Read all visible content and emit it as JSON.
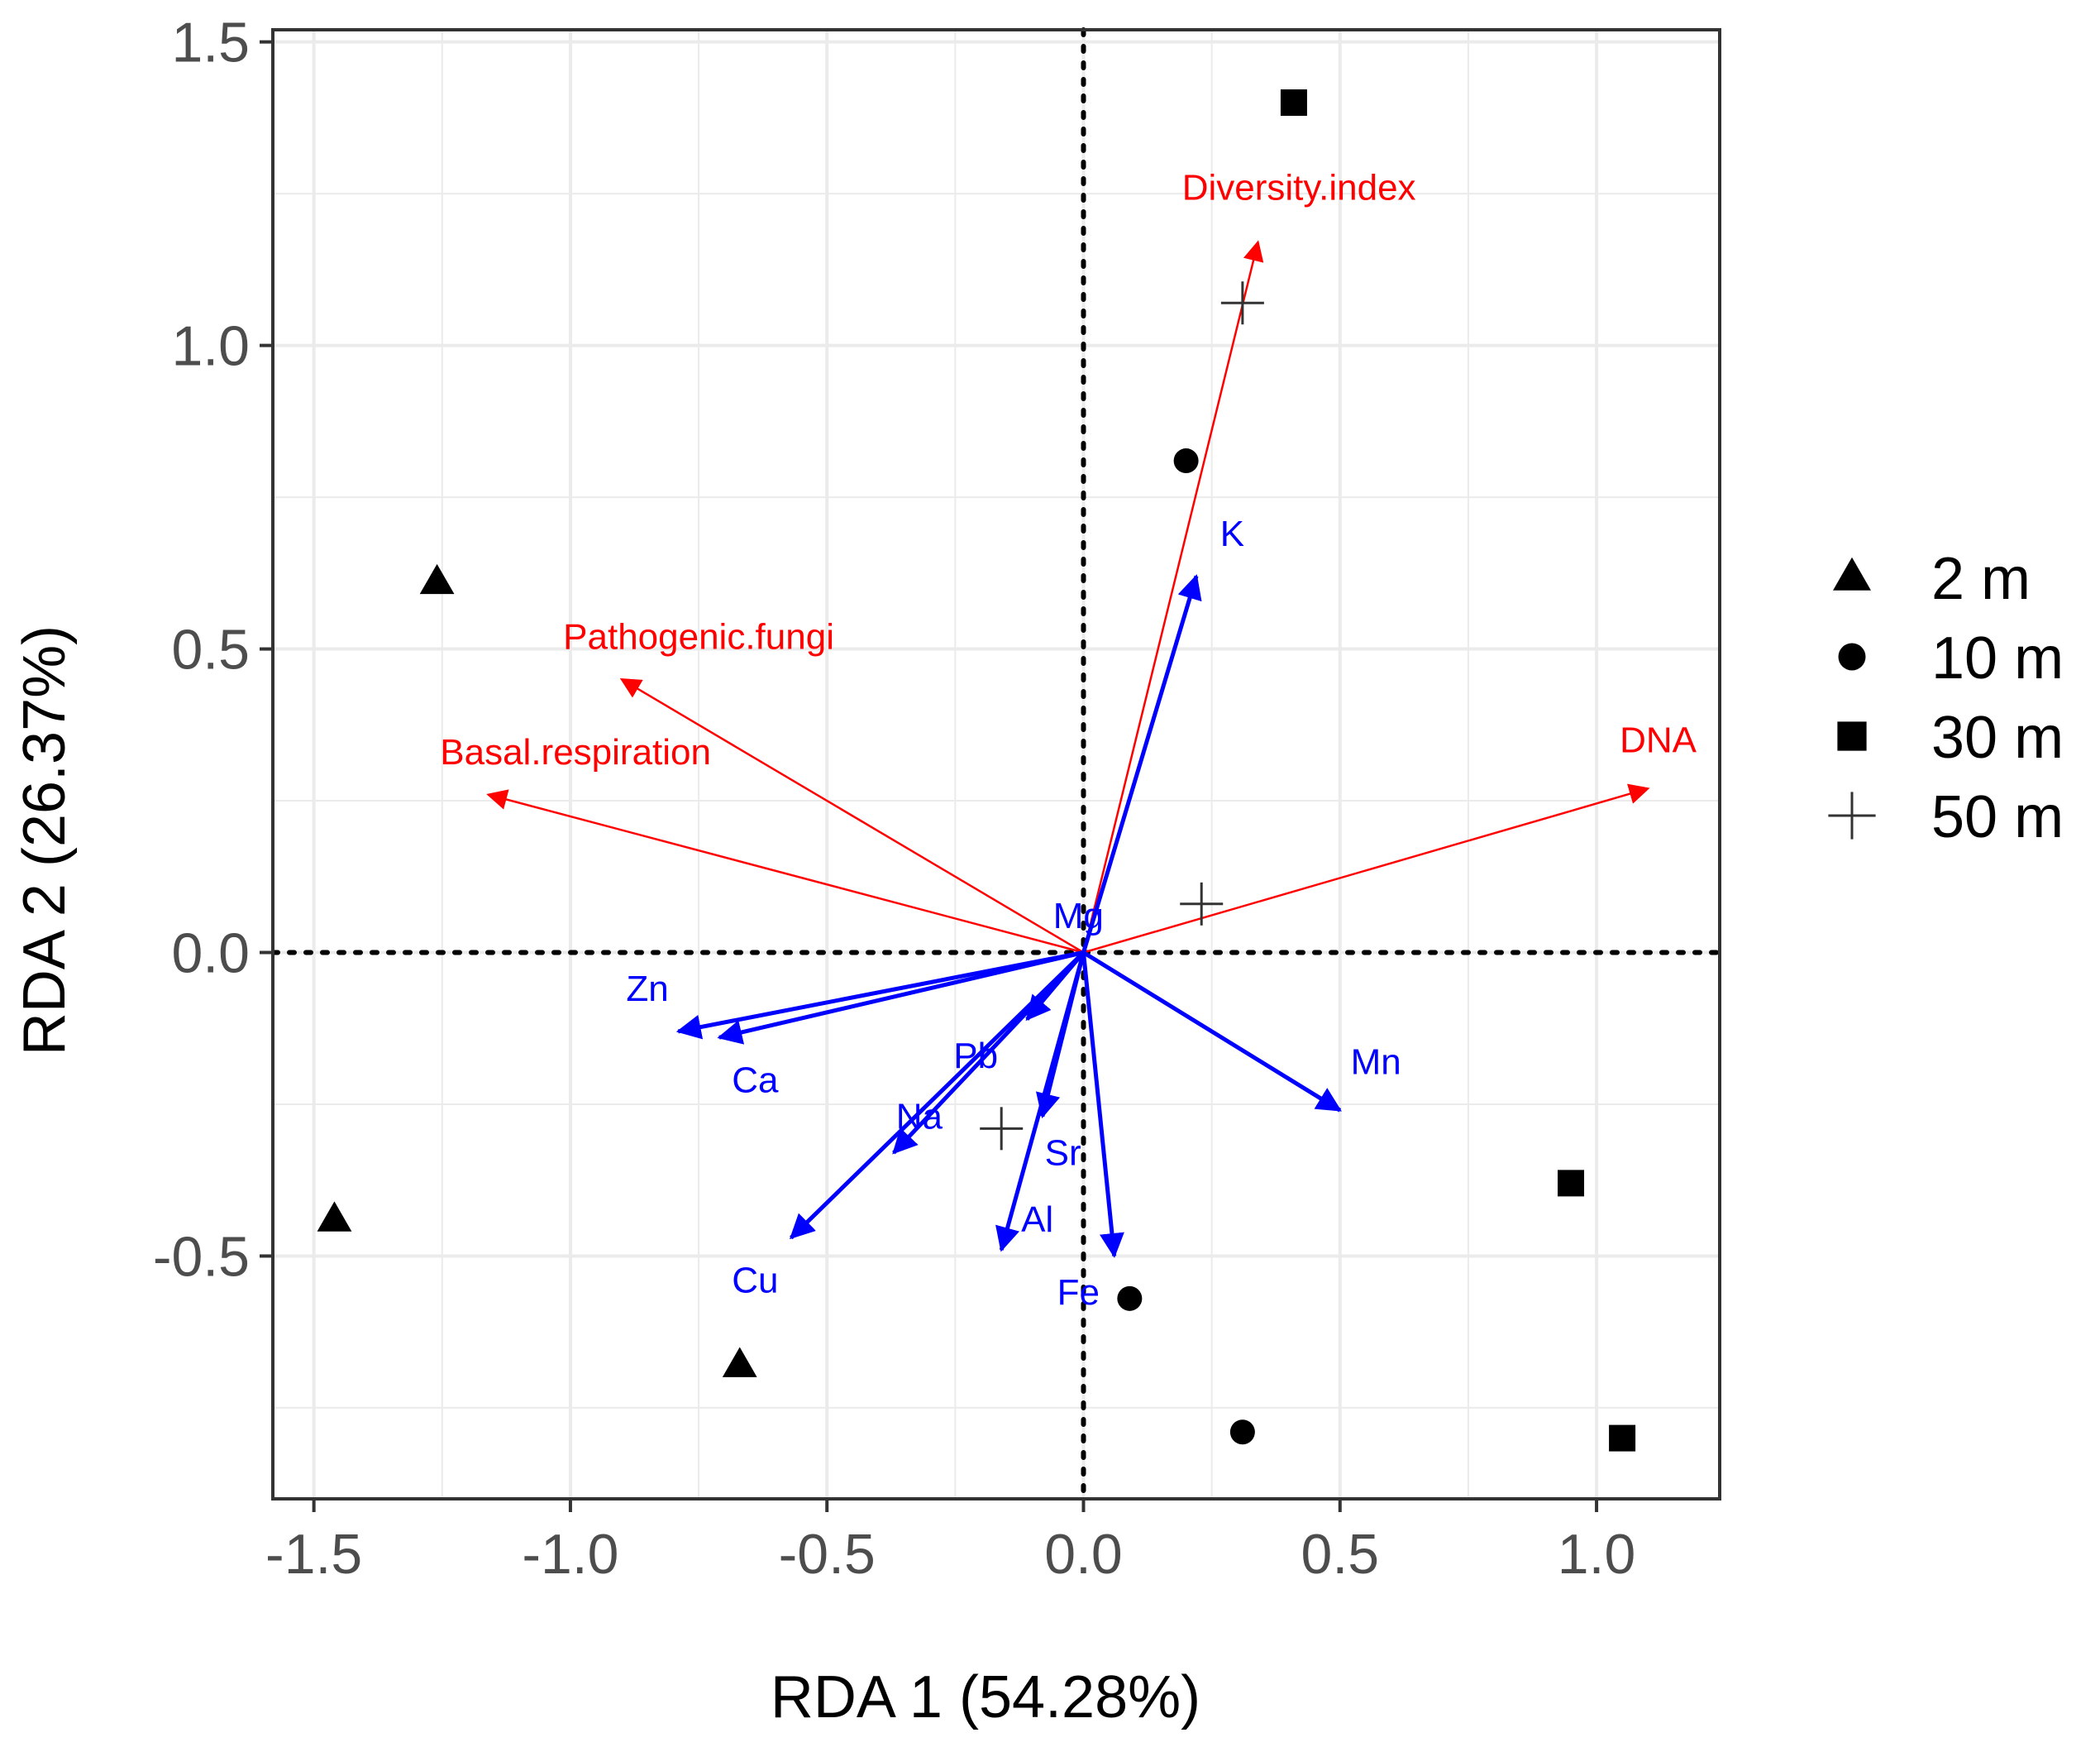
{
  "chart_data": {
    "type": "scatter",
    "subtype": "rda-biplot",
    "xlabel": "RDA 1 (54.28%)",
    "ylabel": "RDA 2 (26.37%)",
    "xlim": [
      -1.58,
      1.24
    ],
    "ylim": [
      -0.9,
      1.52
    ],
    "x_ticks": [
      -1.5,
      -1.0,
      -0.5,
      0.0,
      0.5,
      1.0
    ],
    "x_tick_labels": [
      "-1.5",
      "-1.0",
      "-0.5",
      "0.0",
      "0.5",
      "1.0"
    ],
    "y_ticks": [
      -0.5,
      0.0,
      0.5,
      1.0,
      1.5
    ],
    "y_tick_labels": [
      "-0.5",
      "0.0",
      "0.5",
      "1.0",
      "1.5"
    ],
    "grid": true,
    "legend_position": "right",
    "series": [
      {
        "name": "2 m",
        "shape": "triangle",
        "points": [
          [
            -1.26,
            0.61
          ],
          [
            -1.46,
            -0.44
          ],
          [
            -0.67,
            -0.68
          ]
        ]
      },
      {
        "name": "10 m",
        "shape": "circle",
        "points": [
          [
            0.2,
            0.81
          ],
          [
            0.09,
            -0.57
          ],
          [
            0.31,
            -0.79
          ]
        ]
      },
      {
        "name": "30 m",
        "shape": "square",
        "points": [
          [
            0.41,
            1.4
          ],
          [
            0.95,
            -0.38
          ],
          [
            1.05,
            -0.8
          ]
        ]
      },
      {
        "name": "50 m",
        "shape": "plus",
        "points": [
          [
            0.31,
            1.07
          ],
          [
            0.23,
            0.08
          ],
          [
            -0.16,
            -0.29
          ]
        ]
      }
    ],
    "response_vectors": [
      {
        "name": "Diversity.index",
        "x": 0.34,
        "y": 1.17,
        "label_x": 0.42,
        "label_y": 1.24
      },
      {
        "name": "Pathogenic.fungi",
        "x": -0.9,
        "y": 0.45,
        "label_x": -0.75,
        "label_y": 0.5
      },
      {
        "name": "Basal.respiration",
        "x": -1.16,
        "y": 0.26,
        "label_x": -0.99,
        "label_y": 0.31
      },
      {
        "name": "DNA",
        "x": 1.1,
        "y": 0.27,
        "label_x": 1.12,
        "label_y": 0.33
      }
    ],
    "explanatory_vectors": [
      {
        "name": "K",
        "x": 0.22,
        "y": 0.62,
        "label_x": 0.29,
        "label_y": 0.67
      },
      {
        "name": "Mg",
        "x": 0.0,
        "y": 0.0,
        "label_x": -0.01,
        "label_y": 0.04
      },
      {
        "name": "Zn",
        "x": -0.79,
        "y": -0.13,
        "label_x": -0.85,
        "label_y": -0.08
      },
      {
        "name": "Ca",
        "x": -0.71,
        "y": -0.14,
        "label_x": -0.64,
        "label_y": -0.23
      },
      {
        "name": "Pb",
        "x": -0.11,
        "y": -0.11,
        "label_x": -0.21,
        "label_y": -0.19
      },
      {
        "name": "Na",
        "x": -0.37,
        "y": -0.33,
        "label_x": -0.32,
        "label_y": -0.29
      },
      {
        "name": "Cu",
        "x": -0.57,
        "y": -0.47,
        "label_x": -0.64,
        "label_y": -0.56
      },
      {
        "name": "Sr",
        "x": -0.08,
        "y": -0.27,
        "label_x": -0.04,
        "label_y": -0.35
      },
      {
        "name": "Al",
        "x": -0.16,
        "y": -0.49,
        "label_x": -0.09,
        "label_y": -0.46
      },
      {
        "name": "Fe",
        "x": 0.06,
        "y": -0.5,
        "label_x": -0.01,
        "label_y": -0.58
      },
      {
        "name": "Mn",
        "x": 0.5,
        "y": -0.26,
        "label_x": 0.57,
        "label_y": -0.2
      }
    ],
    "colors": {
      "response": "#ff0000",
      "explanatory": "#0000ff",
      "points": "#000000",
      "grid": "#ebebeb",
      "axis_text": "#4d4d4d"
    }
  }
}
